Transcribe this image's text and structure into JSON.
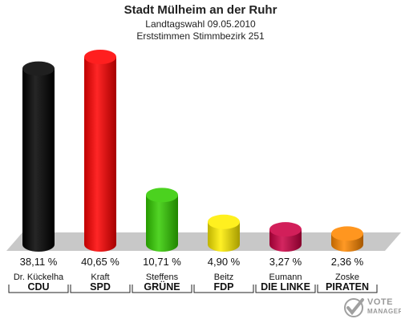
{
  "chart_data": {
    "type": "bar",
    "title": "Stadt Mülheim an der Ruhr",
    "subtitle": [
      "Landtagswahl 09.05.2010",
      "Erststimmen Stimmbezirk 251"
    ],
    "categories": [
      "CDU",
      "SPD",
      "GRÜNE",
      "FDP",
      "DIE LINKE",
      "PIRATEN"
    ],
    "candidates": [
      "Dr. Kückelha",
      "Kraft",
      "Steffens",
      "Beitz",
      "Eumann",
      "Zoske"
    ],
    "values": [
      38.11,
      40.65,
      10.71,
      4.9,
      3.27,
      2.36
    ],
    "value_labels": [
      "38,11 %",
      "40,65 %",
      "10,71 %",
      "4,90 %",
      "3,27 %",
      "2,36 %"
    ],
    "colors": [
      "#000000",
      "#ff0000",
      "#33cc00",
      "#ffee00",
      "#cc0044",
      "#ff8800"
    ],
    "ylim": [
      0,
      40.65
    ],
    "xlabel": "",
    "ylabel": ""
  },
  "brand": {
    "line1": "VOTE",
    "line2": "MANAGER",
    "icon": "vote-manager-logo-icon"
  }
}
